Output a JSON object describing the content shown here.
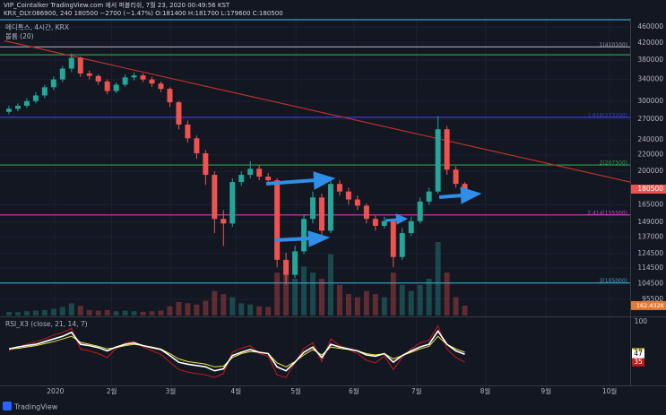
{
  "header": {
    "publisher": "VIP_Cointalker TradingView.com 에서 퍼블리쉬, 7월 23, 2020 00:49:56 KST",
    "symbol_line": "KRX_DLY:086900, 240  180500  −2700 (−1.47%)  O:181400  H:181700  L:179600  C:180500"
  },
  "chart_data": {
    "type": "candlestick",
    "title": "메디톡스, 4시간, KRX",
    "log_scale": true,
    "up_color": "#26a69a",
    "down_color": "#ef5350",
    "xlim": [
      0,
      70
    ],
    "xticks": [
      {
        "value": 5.7,
        "label": "2020"
      },
      {
        "value": 12.0,
        "label": "2월"
      },
      {
        "value": 18.6,
        "label": "3월"
      },
      {
        "value": 25.9,
        "label": "4월"
      },
      {
        "value": 32.6,
        "label": "5월"
      },
      {
        "value": 39.1,
        "label": "6월"
      },
      {
        "value": 46.1,
        "label": "7월"
      },
      {
        "value": 53.8,
        "label": "8월"
      },
      {
        "value": 60.6,
        "label": "9월"
      },
      {
        "value": 67.7,
        "label": "10월"
      }
    ],
    "ylim": [
      87000,
      485000
    ],
    "yticks": [
      460000,
      420000,
      380000,
      340000,
      300000,
      270000,
      240000,
      220000,
      200000,
      165000,
      149000,
      137000,
      124500,
      114500,
      104500,
      95500
    ],
    "open": [
      282000,
      287000,
      292000,
      300000,
      310000,
      325000,
      340000,
      362000,
      385000,
      352000,
      347000,
      336000,
      318000,
      330000,
      344000,
      348000,
      340000,
      332000,
      322000,
      298000,
      262000,
      242000,
      222000,
      196000,
      152000,
      148000,
      188000,
      196000,
      203000,
      194000,
      190000,
      120000,
      110000,
      126000,
      152000,
      172000,
      142000,
      186000,
      178000,
      170000,
      164000,
      152000,
      146000,
      150000,
      122000,
      140000,
      150000,
      168000,
      178000,
      255000,
      202000,
      186000
    ],
    "high": [
      292000,
      296000,
      305000,
      316000,
      330000,
      346000,
      368000,
      395000,
      388000,
      358000,
      350000,
      340000,
      334000,
      350000,
      354000,
      352000,
      345000,
      336000,
      325000,
      300000,
      268000,
      246000,
      226000,
      200000,
      160000,
      192000,
      200000,
      212000,
      207000,
      198000,
      192000,
      125000,
      130000,
      156000,
      178000,
      176000,
      192000,
      190000,
      182000,
      174000,
      166000,
      155000,
      154000,
      152000,
      144000,
      154000,
      172000,
      182000,
      275000,
      260000,
      206000,
      188000
    ],
    "low": [
      278000,
      283000,
      288000,
      296000,
      305000,
      320000,
      335000,
      355000,
      345000,
      340000,
      330000,
      312000,
      314000,
      326000,
      338000,
      335000,
      326000,
      316000,
      290000,
      255000,
      236000,
      215000,
      185000,
      140000,
      130000,
      145000,
      184000,
      192000,
      190000,
      186000,
      115000,
      104000,
      108000,
      124000,
      148000,
      136000,
      140000,
      174000,
      165000,
      160000,
      148000,
      142000,
      144000,
      115000,
      120000,
      138000,
      148000,
      165000,
      176000,
      196000,
      182000,
      179600
    ],
    "close": [
      287000,
      292000,
      300000,
      310000,
      325000,
      340000,
      362000,
      385000,
      352000,
      347000,
      336000,
      318000,
      330000,
      344000,
      348000,
      340000,
      332000,
      322000,
      298000,
      262000,
      242000,
      222000,
      196000,
      152000,
      148000,
      188000,
      196000,
      203000,
      194000,
      190000,
      120000,
      110000,
      126000,
      152000,
      172000,
      142000,
      186000,
      178000,
      170000,
      164000,
      152000,
      146000,
      150000,
      122000,
      140000,
      150000,
      168000,
      178000,
      255000,
      202000,
      186000,
      180500
    ],
    "levels": [
      {
        "value": 480000,
        "color": "#3aa0c8"
      },
      {
        "value": 410100,
        "label": "1(410100)",
        "color": "#9598a1"
      },
      {
        "value": 392000,
        "color": "#2e9e4c"
      },
      {
        "value": 273200,
        "label": "1.618(273200)",
        "color": "#3b3bd6"
      },
      {
        "value": 207500,
        "label": "2(207500)",
        "color": "#2e9e4c"
      },
      {
        "value": 155500,
        "label": "2.414(155500)",
        "color": "#d63cc8"
      },
      {
        "value": 105000,
        "label": "3(105000)",
        "color": "#3aa0c8"
      }
    ],
    "trend_line": {
      "from": [
        0,
        425000
      ],
      "to": [
        70,
        188000
      ],
      "color": "#b8322a"
    },
    "volume": {
      "name": "볼륨 (20)",
      "last_label": "162.432K",
      "ylim": [
        0,
        1200
      ],
      "values": [
        60,
        55,
        70,
        80,
        90,
        110,
        140,
        200,
        160,
        90,
        80,
        90,
        70,
        80,
        70,
        60,
        70,
        80,
        150,
        220,
        200,
        180,
        240,
        400,
        350,
        300,
        200,
        180,
        150,
        140,
        700,
        900,
        600,
        800,
        700,
        600,
        1000,
        500,
        350,
        300,
        400,
        350,
        300,
        700,
        500,
        400,
        500,
        600,
        1200,
        700,
        300,
        162.432
      ]
    },
    "rsi": {
      "type": "line",
      "title": "RSI_X3 (close, 21, 14, 7)",
      "ylim": [
        0,
        100
      ],
      "yticks": [
        100
      ],
      "series": [
        {
          "color": "#e8e84a",
          "values": [
            55,
            56,
            58,
            60,
            63,
            66,
            70,
            74,
            65,
            62,
            59,
            55,
            57,
            60,
            62,
            60,
            58,
            55,
            48,
            40,
            36,
            34,
            32,
            28,
            29,
            42,
            48,
            51,
            50,
            48,
            34,
            28,
            36,
            46,
            54,
            46,
            58,
            56,
            54,
            52,
            48,
            46,
            48,
            40,
            45,
            50,
            55,
            59,
            74,
            62,
            55,
            50
          ]
        },
        {
          "color": "#ffffff",
          "values": [
            55,
            58,
            60,
            62,
            66,
            70,
            74,
            80,
            62,
            60,
            57,
            52,
            58,
            62,
            64,
            60,
            57,
            54,
            45,
            35,
            32,
            30,
            28,
            22,
            25,
            45,
            50,
            54,
            50,
            48,
            28,
            22,
            35,
            50,
            58,
            42,
            62,
            58,
            55,
            52,
            46,
            44,
            48,
            35,
            45,
            52,
            58,
            62,
            82,
            62,
            52,
            47
          ]
        },
        {
          "color": "#c41a1a",
          "values": [
            52,
            58,
            62,
            66,
            70,
            76,
            80,
            86,
            55,
            52,
            48,
            42,
            56,
            64,
            66,
            58,
            52,
            47,
            35,
            24,
            20,
            18,
            16,
            12,
            18,
            50,
            56,
            60,
            48,
            44,
            16,
            12,
            34,
            56,
            64,
            36,
            70,
            60,
            54,
            48,
            38,
            34,
            44,
            24,
            42,
            55,
            64,
            68,
            90,
            55,
            42,
            35
          ]
        }
      ]
    }
  },
  "footer": {
    "brand": "TradingView"
  }
}
